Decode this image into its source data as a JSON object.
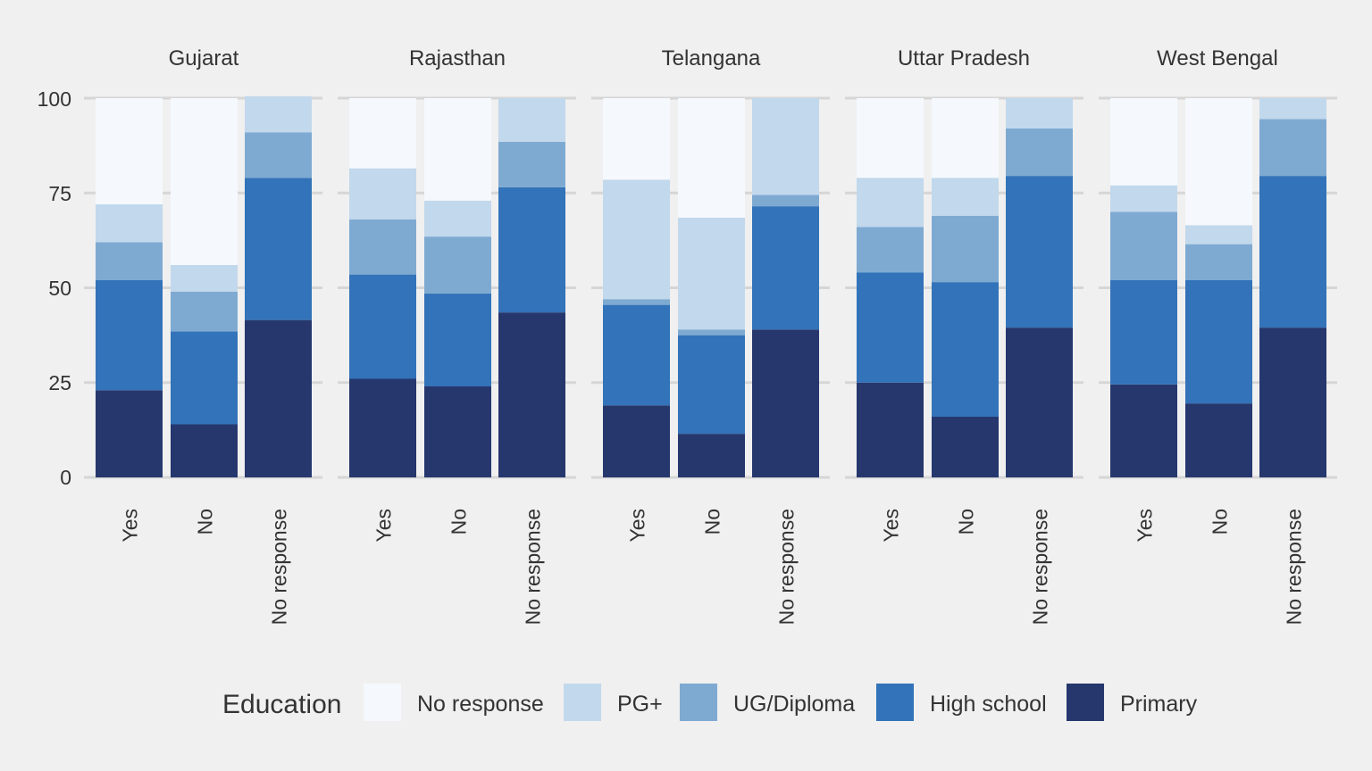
{
  "chart_data": {
    "type": "bar",
    "stacked": true,
    "facets": [
      "Gujarat",
      "Rajasthan",
      "Telangana",
      "Uttar Pradesh",
      "West Bengal"
    ],
    "categories": [
      "Yes",
      "No",
      "No response"
    ],
    "y_ticks": [
      "0",
      "25",
      "50",
      "75",
      "100"
    ],
    "ylim": [
      0,
      100
    ],
    "grid": true,
    "legend": {
      "title": "Education",
      "position": "bottom",
      "entries": [
        {
          "label": "No response",
          "color": "#f5f9fd"
        },
        {
          "label": "PG+",
          "color": "#c2d8ec"
        },
        {
          "label": "UG/Diploma",
          "color": "#7eaad2"
        },
        {
          "label": "High school",
          "color": "#3373b9"
        },
        {
          "label": "Primary",
          "color": "#26376e"
        }
      ]
    },
    "stack_order": [
      "Primary",
      "High school",
      "UG/Diploma",
      "PG+",
      "No response"
    ],
    "values": {
      "Gujarat": {
        "Yes": {
          "Primary": 23,
          "High school": 29,
          "UG/Diploma": 10,
          "PG+": 10,
          "No response": 28
        },
        "No": {
          "Primary": 14,
          "High school": 24.5,
          "UG/Diploma": 10.5,
          "PG+": 7,
          "No response": 44
        },
        "No response": {
          "Primary": 41.5,
          "High school": 37.5,
          "UG/Diploma": 12,
          "PG+": 9.5,
          "No response": 0
        }
      },
      "Rajasthan": {
        "Yes": {
          "Primary": 26,
          "High school": 27.5,
          "UG/Diploma": 14.5,
          "PG+": 13.5,
          "No response": 18.5
        },
        "No": {
          "Primary": 24,
          "High school": 24.5,
          "UG/Diploma": 15,
          "PG+": 9.5,
          "No response": 27
        },
        "No response": {
          "Primary": 43.5,
          "High school": 33,
          "UG/Diploma": 12,
          "PG+": 11.5,
          "No response": 0
        }
      },
      "Telangana": {
        "Yes": {
          "Primary": 19,
          "High school": 26.5,
          "UG/Diploma": 1.5,
          "PG+": 31.5,
          "No response": 21.5
        },
        "No": {
          "Primary": 11.5,
          "High school": 26,
          "UG/Diploma": 1.5,
          "PG+": 29.5,
          "No response": 31.5
        },
        "No response": {
          "Primary": 39,
          "High school": 32.5,
          "UG/Diploma": 3,
          "PG+": 25.5,
          "No response": 0
        }
      },
      "Uttar Pradesh": {
        "Yes": {
          "Primary": 25,
          "High school": 29,
          "UG/Diploma": 12,
          "PG+": 13,
          "No response": 21
        },
        "No": {
          "Primary": 16,
          "High school": 35.5,
          "UG/Diploma": 17.5,
          "PG+": 10,
          "No response": 21
        },
        "No response": {
          "Primary": 39.5,
          "High school": 40,
          "UG/Diploma": 12.5,
          "PG+": 8,
          "No response": 0
        }
      },
      "West Bengal": {
        "Yes": {
          "Primary": 24.5,
          "High school": 27.5,
          "UG/Diploma": 18,
          "PG+": 7,
          "No response": 23
        },
        "No": {
          "Primary": 19.5,
          "High school": 32.5,
          "UG/Diploma": 9.5,
          "PG+": 5,
          "No response": 33.5
        },
        "No response": {
          "Primary": 39.5,
          "High school": 40,
          "UG/Diploma": 15,
          "PG+": 5.5,
          "No response": 0
        }
      }
    }
  }
}
